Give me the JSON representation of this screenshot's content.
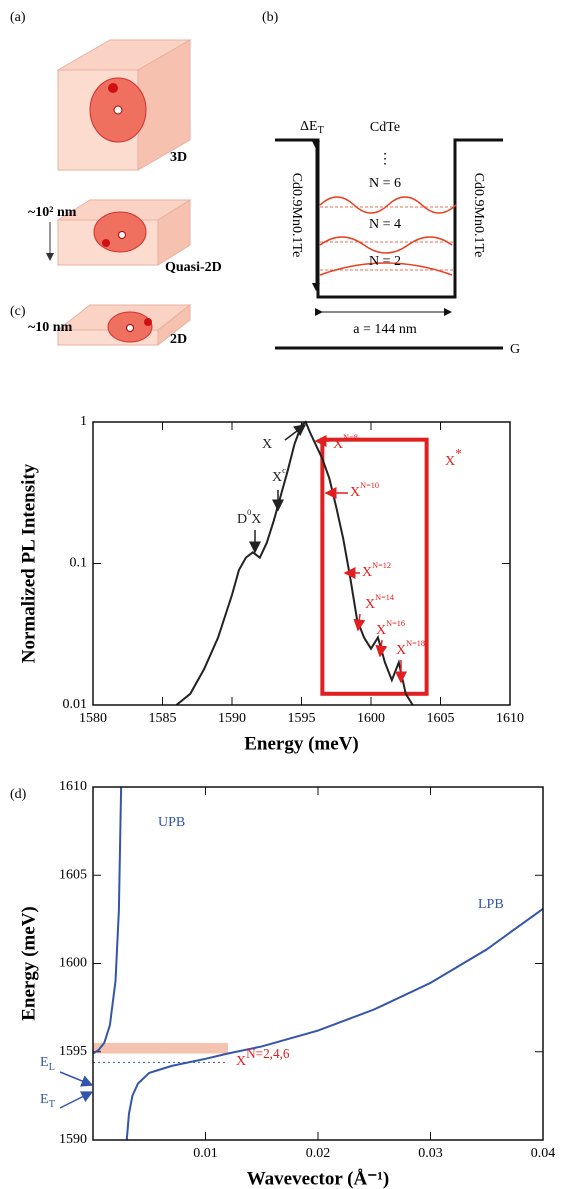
{
  "panel_a": {
    "label": "(a)",
    "labels": [
      "3D",
      "~10² nm",
      "Quasi-2D",
      "~10 nm",
      "2D"
    ]
  },
  "panel_b": {
    "label": "(b)",
    "delta": "ΔE",
    "delta_sub": "T",
    "well": "CdTe",
    "dots": "⋮",
    "levels": [
      "N = 6",
      "N = 4",
      "N = 2"
    ],
    "barrier": "Cd0.9Mn0.1Te",
    "width": "a = 144 nm",
    "ground": "G"
  },
  "chart_data": [
    {
      "type": "line",
      "panel": "(c)",
      "xlabel": "Energy (meV)",
      "ylabel": "Normalized PL Intensity",
      "log_y": true,
      "xlim": [
        1580,
        1610
      ],
      "xticks": [
        1580,
        1585,
        1590,
        1595,
        1600,
        1605,
        1610
      ],
      "ylim": [
        0.01,
        1
      ],
      "yticks": [
        0.01,
        0.1,
        1
      ],
      "series": [
        {
          "color": "#222222",
          "x": [
            1586,
            1587,
            1588,
            1589,
            1590,
            1590.5,
            1591,
            1591.5,
            1592,
            1592.5,
            1593,
            1593.5,
            1594,
            1594.5,
            1595,
            1595.3,
            1595.6,
            1596,
            1596.5,
            1597,
            1597.5,
            1598,
            1598.5,
            1599,
            1599.5,
            1600,
            1600.5,
            1601,
            1601.5,
            1602,
            1602.5,
            1603
          ],
          "values": [
            0.01,
            0.012,
            0.018,
            0.03,
            0.06,
            0.09,
            0.11,
            0.12,
            0.11,
            0.14,
            0.2,
            0.3,
            0.45,
            0.7,
            0.95,
            1,
            0.85,
            0.7,
            0.55,
            0.4,
            0.25,
            0.15,
            0.08,
            0.04,
            0.03,
            0.025,
            0.03,
            0.02,
            0.015,
            0.02,
            0.012,
            0.01
          ]
        }
      ],
      "highlight": {
        "xlim": [
          1596.5,
          1604
        ],
        "ylim": [
          0.012,
          0.75
        ],
        "color": "#e02020"
      },
      "annotations": [
        {
          "text": "X",
          "color": "#222222"
        },
        {
          "text": "X",
          "sup": "c",
          "color": "#222222"
        },
        {
          "text": "D",
          "sup": "0",
          "text2": "X",
          "color": "#222222"
        },
        {
          "text": "X",
          "sup": "N=8",
          "color": "#e02020"
        },
        {
          "text": "X",
          "sup": "N=10",
          "color": "#e02020"
        },
        {
          "text": "X",
          "sup": "N=12",
          "color": "#e02020"
        },
        {
          "text": "X",
          "sup": "N=14",
          "color": "#e02020"
        },
        {
          "text": "X",
          "sup": "N=16",
          "color": "#e02020"
        },
        {
          "text": "X",
          "sup": "N=18",
          "color": "#e02020"
        },
        {
          "text": "X",
          "sup": "*",
          "color": "#e02020"
        }
      ]
    },
    {
      "type": "line",
      "panel": "(d)",
      "xlabel": "Wavevector (Å⁻¹)",
      "ylabel": "Energy (meV)",
      "log_y": false,
      "xlim": [
        0,
        0.04
      ],
      "xticks": [
        0.01,
        0.02,
        0.03,
        0.04
      ],
      "ylim": [
        1590,
        1610
      ],
      "yticks": [
        1590,
        1595,
        1600,
        1605,
        1610
      ],
      "series": [
        {
          "name": "UPB",
          "color": "#3355aa",
          "x": [
            0,
            0.0005,
            0.001,
            0.0015,
            0.002,
            0.0023,
            0.0025
          ],
          "values": [
            1594.9,
            1595.1,
            1595.5,
            1596.5,
            1599,
            1603,
            1610
          ]
        },
        {
          "name": "LPB",
          "color": "#3355aa",
          "x": [
            0.003,
            0.0032,
            0.0035,
            0.004,
            0.005,
            0.007,
            0.01,
            0.012,
            0.015,
            0.02,
            0.025,
            0.03,
            0.035,
            0.04
          ],
          "values": [
            1590,
            1591.5,
            1592.5,
            1593.2,
            1593.8,
            1594.2,
            1594.6,
            1594.9,
            1595.3,
            1596.2,
            1597.4,
            1598.9,
            1600.8,
            1603.1
          ]
        }
      ],
      "band": {
        "xlim": [
          0,
          0.012
        ],
        "ylim": [
          1594.9,
          1595.5
        ],
        "color": "#f5c4b0"
      },
      "level": {
        "y": 1594.4,
        "xlim": [
          0,
          0.012
        ]
      },
      "annotations": [
        {
          "text": "X",
          "sup": "N=2,4,6",
          "color": "#e02020"
        },
        {
          "text": "E",
          "sub": "L",
          "color": "#3355aa"
        },
        {
          "text": "E",
          "sub": "T",
          "color": "#3355aa"
        }
      ]
    }
  ]
}
